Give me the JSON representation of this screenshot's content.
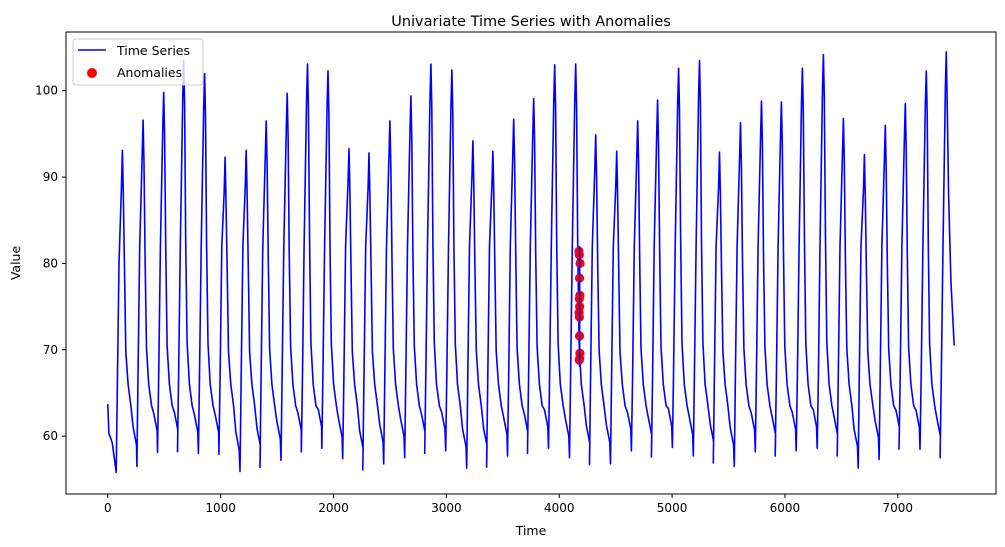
{
  "chart_data": {
    "type": "line",
    "title": "Univariate Time Series with Anomalies",
    "xlabel": "Time",
    "ylabel": "Value",
    "xlim": [
      -370,
      7870
    ],
    "ylim": [
      53.3,
      106.8
    ],
    "xticks": [
      0,
      1000,
      2000,
      3000,
      4000,
      5000,
      6000,
      7000
    ],
    "yticks": [
      60,
      70,
      80,
      90,
      100
    ],
    "grid": false,
    "legend": {
      "position": "upper left",
      "entries": [
        {
          "label": "Time Series",
          "type": "line",
          "color": "#0000ff"
        },
        {
          "label": "Anomalies",
          "type": "scatter",
          "color": "#ff0000"
        }
      ]
    },
    "series": [
      {
        "name": "Time Series",
        "color": "#0000ff",
        "start": {
          "t": 0,
          "value": 63.7
        },
        "end": {
          "t": 7500,
          "value": 70.5
        },
        "troughs": [
          55.8,
          56.5,
          58.1,
          58.2,
          58.0,
          57.9,
          55.9,
          56.4,
          57.2,
          58.2,
          58.6,
          57.4,
          56.1,
          56.8,
          57.5,
          58.0,
          58.3,
          56.3,
          56.4,
          57.7,
          58.0,
          58.6,
          57.5,
          56.7,
          56.8,
          58.3,
          57.6,
          58.7,
          57.7,
          56.9,
          56.5,
          58.2,
          57.7,
          58.3,
          58.6,
          57.7,
          56.3,
          57.3,
          58.5,
          58.5
        ],
        "peaks": [
          {
            "t": 130,
            "value": 93.1
          },
          {
            "t": 313,
            "value": 96.6
          },
          {
            "t": 496,
            "value": 99.8
          },
          {
            "t": 673,
            "value": 103.5
          },
          {
            "t": 858,
            "value": 102.0
          },
          {
            "t": 1040,
            "value": 92.3
          },
          {
            "t": 1227,
            "value": 93.1
          },
          {
            "t": 1404,
            "value": 96.5
          },
          {
            "t": 1590,
            "value": 99.7
          },
          {
            "t": 1770,
            "value": 103.1
          },
          {
            "t": 1951,
            "value": 102.3
          },
          {
            "t": 2137,
            "value": 93.3
          },
          {
            "t": 2315,
            "value": 92.8
          },
          {
            "t": 2500,
            "value": 96.5
          },
          {
            "t": 2686,
            "value": 99.4
          },
          {
            "t": 2863,
            "value": 103.1
          },
          {
            "t": 3049,
            "value": 102.4
          },
          {
            "t": 3235,
            "value": 94.2
          },
          {
            "t": 3412,
            "value": 93.0
          },
          {
            "t": 3597,
            "value": 96.7
          },
          {
            "t": 3774,
            "value": 99.1
          },
          {
            "t": 3960,
            "value": 103.0
          },
          {
            "t": 4146,
            "value": 103.1
          },
          {
            "t": 4323,
            "value": 94.9
          },
          {
            "t": 4509,
            "value": 93.0
          },
          {
            "t": 4695,
            "value": 96.5
          },
          {
            "t": 4872,
            "value": 98.9
          },
          {
            "t": 5058,
            "value": 102.6
          },
          {
            "t": 5243,
            "value": 103.5
          },
          {
            "t": 5420,
            "value": 92.9
          },
          {
            "t": 5606,
            "value": 96.3
          },
          {
            "t": 5792,
            "value": 98.8
          },
          {
            "t": 5969,
            "value": 98.7
          },
          {
            "t": 6155,
            "value": 102.6
          },
          {
            "t": 6341,
            "value": 104.2
          },
          {
            "t": 6518,
            "value": 96.8
          },
          {
            "t": 6704,
            "value": 92.6
          },
          {
            "t": 6889,
            "value": 96.0
          },
          {
            "t": 7066,
            "value": 98.5
          },
          {
            "t": 7252,
            "value": 102.3
          },
          {
            "t": 7430,
            "value": 104.5
          }
        ]
      },
      {
        "name": "Anomalies",
        "type": "scatter",
        "color": "#ff0000",
        "points": [
          {
            "t": 4175,
            "value": 81.4
          },
          {
            "t": 4178,
            "value": 81.0
          },
          {
            "t": 4185,
            "value": 80.0
          },
          {
            "t": 4180,
            "value": 78.3
          },
          {
            "t": 4183,
            "value": 76.3
          },
          {
            "t": 4178,
            "value": 75.9
          },
          {
            "t": 4181,
            "value": 75.0
          },
          {
            "t": 4176,
            "value": 74.3
          },
          {
            "t": 4179,
            "value": 73.8
          },
          {
            "t": 4180,
            "value": 71.6
          },
          {
            "t": 4183,
            "value": 69.6
          },
          {
            "t": 4181,
            "value": 69.0
          },
          {
            "t": 4178,
            "value": 68.8
          }
        ]
      }
    ]
  }
}
